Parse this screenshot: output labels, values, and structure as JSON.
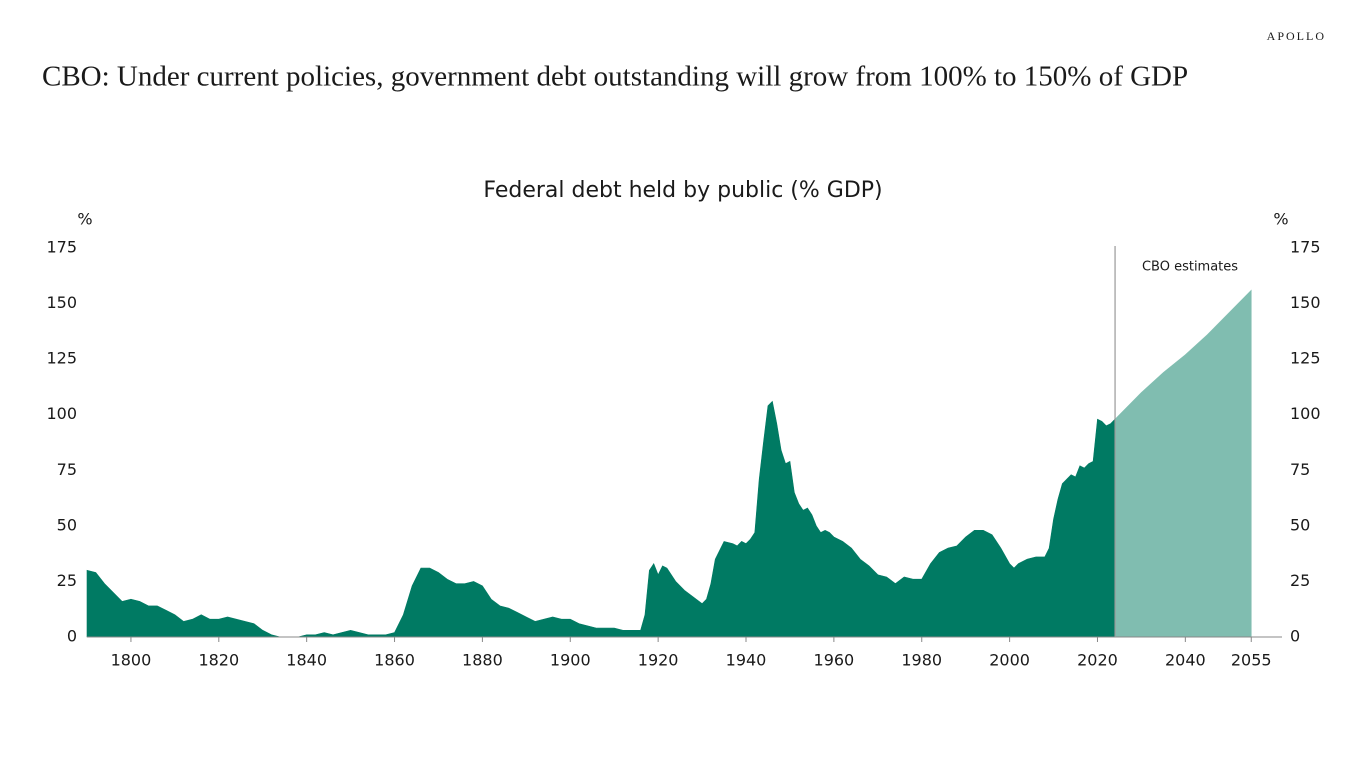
{
  "chart_data": {
    "type": "area",
    "brand": "APOLLO",
    "title": "CBO: Under current policies, government debt outstanding will grow from 100% to 150% of GDP",
    "subtitle": "Federal debt held by public (% GDP)",
    "y_label": "%",
    "y2_label": "%",
    "annotation": "CBO estimates",
    "xlim": [
      1790,
      2062
    ],
    "xticks": [
      1800,
      1820,
      1840,
      1860,
      1880,
      1900,
      1920,
      1940,
      1960,
      1980,
      2000,
      2020,
      2040,
      2055
    ],
    "ylim": [
      0,
      175
    ],
    "yticks": [
      0,
      25,
      50,
      75,
      100,
      125,
      150,
      175
    ],
    "y2lim": [
      0,
      175
    ],
    "y2ticks": [
      0,
      25,
      50,
      75,
      100,
      125,
      150,
      175
    ],
    "series": [
      {
        "color": "#007a63",
        "x": [
          1790,
          1792,
          1794,
          1796,
          1798,
          1800,
          1802,
          1804,
          1806,
          1808,
          1810,
          1812,
          1814,
          1816,
          1818,
          1820,
          1822,
          1824,
          1826,
          1828,
          1830,
          1832,
          1834,
          1836,
          1838,
          1840,
          1842,
          1844,
          1846,
          1848,
          1850,
          1852,
          1854,
          1856,
          1858,
          1860,
          1862,
          1864,
          1866,
          1868,
          1870,
          1872,
          1874,
          1876,
          1878,
          1880,
          1882,
          1884,
          1886,
          1888,
          1890,
          1892,
          1894,
          1896,
          1898,
          1900,
          1902,
          1904,
          1906,
          1908,
          1910,
          1912,
          1914,
          1916,
          1917,
          1918,
          1919,
          1920,
          1921,
          1922,
          1924,
          1926,
          1928,
          1930,
          1931,
          1932,
          1933,
          1935,
          1937,
          1938,
          1939,
          1940,
          1941,
          1942,
          1943,
          1944,
          1945,
          1946,
          1947,
          1948,
          1949,
          1950,
          1951,
          1952,
          1953,
          1954,
          1955,
          1956,
          1957,
          1958,
          1959,
          1960,
          1962,
          1964,
          1966,
          1968,
          1970,
          1972,
          1974,
          1976,
          1978,
          1980,
          1982,
          1984,
          1986,
          1988,
          1990,
          1992,
          1994,
          1996,
          1998,
          2000,
          2001,
          2002,
          2004,
          2006,
          2008,
          2009,
          2010,
          2011,
          2012,
          2014,
          2015,
          2016,
          2017,
          2018,
          2019,
          2020,
          2021,
          2022,
          2023,
          2024
        ],
        "values": [
          30,
          29,
          24,
          20,
          16,
          17,
          16,
          14,
          14,
          12,
          10,
          7,
          8,
          10,
          8,
          8,
          9,
          8,
          7,
          6,
          3,
          1,
          0,
          0,
          0,
          1,
          1,
          2,
          1,
          2,
          3,
          2,
          1,
          1,
          1,
          2,
          10,
          23,
          31,
          31,
          29,
          26,
          24,
          24,
          25,
          23,
          17,
          14,
          13,
          11,
          9,
          7,
          8,
          9,
          8,
          8,
          6,
          5,
          4,
          4,
          4,
          3,
          3,
          3,
          10,
          30,
          33,
          28,
          32,
          31,
          25,
          21,
          18,
          15,
          17,
          24,
          35,
          43,
          42,
          41,
          43,
          42,
          44,
          47,
          71,
          88,
          104,
          106,
          96,
          84,
          78,
          79,
          65,
          60,
          57,
          58,
          55,
          50,
          47,
          48,
          47,
          45,
          43,
          40,
          35,
          32,
          28,
          27,
          24,
          27,
          26,
          26,
          33,
          38,
          40,
          41,
          45,
          48,
          48,
          46,
          40,
          33,
          31,
          33,
          35,
          36,
          36,
          40,
          53,
          62,
          69,
          73,
          72,
          77,
          76,
          78,
          79,
          98,
          97,
          95,
          96,
          98
        ]
      },
      {
        "color": "#80bdb0",
        "x": [
          2024,
          2030,
          2035,
          2040,
          2045,
          2050,
          2055
        ],
        "values": [
          98,
          110,
          119,
          127,
          136,
          146,
          156
        ]
      }
    ]
  }
}
